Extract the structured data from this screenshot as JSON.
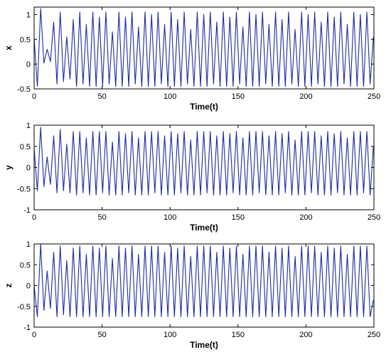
{
  "chart_data": [
    {
      "type": "line",
      "panel": "x",
      "ylabel": "x",
      "xlabel": "Time(t)",
      "xlim": [
        0,
        250
      ],
      "ylim": [
        -0.5,
        1.15
      ],
      "xticks": [
        0,
        50,
        100,
        150,
        200,
        250
      ],
      "yticks": [
        -0.5,
        0,
        0.5,
        1
      ],
      "xtick_labels": [
        "0",
        "50",
        "100",
        "150",
        "200",
        "250"
      ],
      "ytick_labels": [
        "-0.5",
        "0",
        "0.5",
        "1"
      ],
      "grid": false,
      "line_color": "#1f2a9e",
      "series": [
        {
          "x": [
            0,
            2.4,
            4.8,
            7.2,
            9.6,
            12.0,
            14.4,
            16.8,
            19.2,
            21.6,
            24.0,
            26.4,
            28.8,
            31.2,
            33.6,
            36.0,
            38.4,
            40.8,
            43.2,
            45.6,
            48.0,
            50.4,
            52.8,
            55.2,
            57.6,
            60.0,
            62.4,
            64.8,
            67.2,
            69.6,
            72.0,
            74.4,
            76.8,
            79.2,
            81.6,
            84.0,
            86.4,
            88.8,
            91.2,
            93.6,
            96.0,
            98.4,
            100.8,
            103.2,
            105.6,
            108.0,
            110.4,
            112.8,
            115.2,
            117.6,
            120.0,
            122.4,
            124.8,
            127.2,
            129.6,
            132.0,
            134.4,
            136.8,
            139.2,
            141.6,
            144.0,
            146.4,
            148.8,
            151.2,
            153.6,
            156.0,
            158.4,
            160.8,
            163.2,
            165.6,
            168.0,
            170.4,
            172.8,
            175.2,
            177.6,
            180.0,
            182.4,
            184.8,
            187.2,
            189.6,
            192.0,
            194.4,
            196.8,
            199.2,
            201.6,
            204.0,
            206.4,
            208.8,
            211.2,
            213.6,
            216.0,
            218.4,
            220.8,
            223.2,
            225.6,
            228.0,
            230.4,
            232.8,
            235.2,
            237.6,
            240.0,
            242.4,
            244.8,
            247.2,
            249.6
          ],
          "y": [
            0.52,
            -0.45,
            1.12,
            0.02,
            0.3,
            0.05,
            0.85,
            -0.4,
            1.05,
            -0.35,
            0.55,
            -0.3,
            0.9,
            -0.45,
            1.05,
            -0.4,
            0.8,
            -0.45,
            1.05,
            -0.45,
            0.95,
            -0.45,
            1.05,
            -0.4,
            0.65,
            -0.45,
            1.05,
            -0.45,
            0.95,
            -0.45,
            1.05,
            -0.4,
            0.75,
            -0.45,
            1.05,
            -0.45,
            1.0,
            -0.45,
            1.05,
            -0.4,
            0.8,
            -0.45,
            1.05,
            -0.45,
            0.9,
            -0.45,
            1.05,
            -0.4,
            0.7,
            -0.45,
            1.05,
            -0.45,
            1.0,
            -0.45,
            1.05,
            -0.4,
            0.85,
            -0.45,
            1.05,
            -0.45,
            0.95,
            -0.45,
            1.05,
            -0.4,
            0.75,
            -0.45,
            1.05,
            -0.45,
            1.0,
            -0.45,
            1.05,
            -0.4,
            0.8,
            -0.45,
            1.05,
            -0.45,
            0.9,
            -0.45,
            1.05,
            -0.4,
            0.7,
            -0.45,
            1.05,
            -0.45,
            1.0,
            -0.45,
            1.05,
            -0.4,
            0.85,
            -0.45,
            1.05,
            -0.45,
            0.95,
            -0.45,
            1.05,
            -0.4,
            0.8,
            -0.45,
            1.05,
            -0.45,
            1.0,
            -0.45,
            1.05,
            -0.4,
            0.55
          ]
        }
      ]
    },
    {
      "type": "line",
      "panel": "y",
      "ylabel": "y",
      "xlabel": "Time(t)",
      "xlim": [
        0,
        250
      ],
      "ylim": [
        -1,
        1
      ],
      "xticks": [
        0,
        50,
        100,
        150,
        200,
        250
      ],
      "yticks": [
        -1,
        -0.5,
        0,
        0.5,
        1
      ],
      "xtick_labels": [
        "0",
        "50",
        "100",
        "150",
        "200",
        "250"
      ],
      "ytick_labels": [
        "-1",
        "-0.5",
        "0",
        "0.5",
        "1"
      ],
      "grid": false,
      "line_color": "#1f2a9e",
      "series": [
        {
          "x": [
            0,
            2.4,
            4.8,
            7.2,
            9.6,
            12.0,
            14.4,
            16.8,
            19.2,
            21.6,
            24.0,
            26.4,
            28.8,
            31.2,
            33.6,
            36.0,
            38.4,
            40.8,
            43.2,
            45.6,
            48.0,
            50.4,
            52.8,
            55.2,
            57.6,
            60.0,
            62.4,
            64.8,
            67.2,
            69.6,
            72.0,
            74.4,
            76.8,
            79.2,
            81.6,
            84.0,
            86.4,
            88.8,
            91.2,
            93.6,
            96.0,
            98.4,
            100.8,
            103.2,
            105.6,
            108.0,
            110.4,
            112.8,
            115.2,
            117.6,
            120.0,
            122.4,
            124.8,
            127.2,
            129.6,
            132.0,
            134.4,
            136.8,
            139.2,
            141.6,
            144.0,
            146.4,
            148.8,
            151.2,
            153.6,
            156.0,
            158.4,
            160.8,
            163.2,
            165.6,
            168.0,
            170.4,
            172.8,
            175.2,
            177.6,
            180.0,
            182.4,
            184.8,
            187.2,
            189.6,
            192.0,
            194.4,
            196.8,
            199.2,
            201.6,
            204.0,
            206.4,
            208.8,
            211.2,
            213.6,
            216.0,
            218.4,
            220.8,
            223.2,
            225.6,
            228.0,
            230.4,
            232.8,
            235.2,
            237.6,
            240.0,
            242.4,
            244.8,
            247.2,
            249.6
          ],
          "y": [
            0.45,
            -0.55,
            0.95,
            -0.45,
            0.25,
            -0.4,
            0.75,
            -0.6,
            0.9,
            -0.55,
            0.55,
            -0.6,
            0.85,
            -0.65,
            0.85,
            -0.6,
            0.7,
            -0.65,
            0.85,
            -0.65,
            0.85,
            -0.6,
            0.85,
            -0.65,
            0.6,
            -0.65,
            0.85,
            -0.65,
            0.8,
            -0.6,
            0.85,
            -0.65,
            0.7,
            -0.65,
            0.85,
            -0.65,
            0.85,
            -0.6,
            0.85,
            -0.65,
            0.75,
            -0.65,
            0.85,
            -0.65,
            0.8,
            -0.6,
            0.85,
            -0.65,
            0.65,
            -0.65,
            0.85,
            -0.65,
            0.85,
            -0.6,
            0.85,
            -0.65,
            0.75,
            -0.65,
            0.85,
            -0.65,
            0.8,
            -0.6,
            0.85,
            -0.65,
            0.7,
            -0.65,
            0.85,
            -0.65,
            0.85,
            -0.6,
            0.85,
            -0.65,
            0.75,
            -0.65,
            0.85,
            -0.65,
            0.8,
            -0.6,
            0.85,
            -0.65,
            0.65,
            -0.65,
            0.85,
            -0.65,
            0.85,
            -0.6,
            0.85,
            -0.65,
            0.75,
            -0.65,
            0.85,
            -0.65,
            0.8,
            -0.6,
            0.85,
            -0.65,
            0.7,
            -0.65,
            0.85,
            -0.65,
            0.85,
            -0.6,
            0.85,
            -0.65,
            0.5
          ]
        }
      ]
    },
    {
      "type": "line",
      "panel": "z",
      "ylabel": "z",
      "xlabel": "Time(t)",
      "xlim": [
        0,
        250
      ],
      "ylim": [
        -1,
        1
      ],
      "xticks": [
        0,
        50,
        100,
        150,
        200,
        250
      ],
      "yticks": [
        -1,
        -0.5,
        0,
        0.5,
        1
      ],
      "xtick_labels": [
        "0",
        "50",
        "100",
        "150",
        "200",
        "250"
      ],
      "ytick_labels": [
        "-1",
        "-0.5",
        "0",
        "0.5",
        "1"
      ],
      "grid": false,
      "line_color": "#1f2a9e",
      "series": [
        {
          "x": [
            0,
            2.4,
            4.8,
            7.2,
            9.6,
            12.0,
            14.4,
            16.8,
            19.2,
            21.6,
            24.0,
            26.4,
            28.8,
            31.2,
            33.6,
            36.0,
            38.4,
            40.8,
            43.2,
            45.6,
            48.0,
            50.4,
            52.8,
            55.2,
            57.6,
            60.0,
            62.4,
            64.8,
            67.2,
            69.6,
            72.0,
            74.4,
            76.8,
            79.2,
            81.6,
            84.0,
            86.4,
            88.8,
            91.2,
            93.6,
            96.0,
            98.4,
            100.8,
            103.2,
            105.6,
            108.0,
            110.4,
            112.8,
            115.2,
            117.6,
            120.0,
            122.4,
            124.8,
            127.2,
            129.6,
            132.0,
            134.4,
            136.8,
            139.2,
            141.6,
            144.0,
            146.4,
            148.8,
            151.2,
            153.6,
            156.0,
            158.4,
            160.8,
            163.2,
            165.6,
            168.0,
            170.4,
            172.8,
            175.2,
            177.6,
            180.0,
            182.4,
            184.8,
            187.2,
            189.6,
            192.0,
            194.4,
            196.8,
            199.2,
            201.6,
            204.0,
            206.4,
            208.8,
            211.2,
            213.6,
            216.0,
            218.4,
            220.8,
            223.2,
            225.6,
            228.0,
            230.4,
            232.8,
            235.2,
            237.6,
            240.0,
            242.4,
            244.8,
            247.2,
            249.6
          ],
          "y": [
            0.0,
            -0.75,
            1.0,
            -0.6,
            0.35,
            -0.55,
            0.8,
            -0.75,
            0.95,
            -0.7,
            0.6,
            -0.75,
            0.9,
            -0.75,
            0.95,
            -0.75,
            0.75,
            -0.75,
            0.95,
            -0.75,
            0.9,
            -0.75,
            0.95,
            -0.75,
            0.65,
            -0.75,
            0.95,
            -0.75,
            0.9,
            -0.75,
            0.95,
            -0.75,
            0.75,
            -0.75,
            0.95,
            -0.75,
            0.95,
            -0.75,
            0.95,
            -0.75,
            0.8,
            -0.75,
            0.95,
            -0.75,
            0.9,
            -0.75,
            0.95,
            -0.75,
            0.7,
            -0.75,
            0.95,
            -0.75,
            0.95,
            -0.75,
            0.95,
            -0.75,
            0.8,
            -0.75,
            0.95,
            -0.75,
            0.9,
            -0.75,
            0.95,
            -0.75,
            0.75,
            -0.75,
            0.95,
            -0.75,
            0.95,
            -0.75,
            0.95,
            -0.75,
            0.8,
            -0.75,
            0.95,
            -0.75,
            0.9,
            -0.75,
            0.95,
            -0.75,
            0.7,
            -0.75,
            0.95,
            -0.75,
            0.95,
            -0.75,
            0.95,
            -0.75,
            0.8,
            -0.75,
            0.95,
            -0.75,
            0.9,
            -0.75,
            0.95,
            -0.75,
            0.75,
            -0.75,
            0.95,
            -0.75,
            0.95,
            -0.75,
            0.95,
            -0.75,
            -0.35
          ]
        }
      ]
    }
  ]
}
